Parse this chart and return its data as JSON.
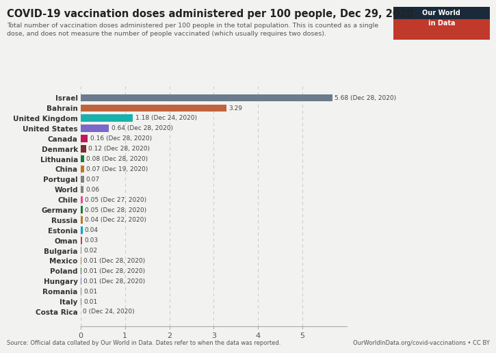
{
  "title": "COVID-19 vaccination doses administered per 100 people, Dec 29, 2020",
  "subtitle": "Total number of vaccination doses administered per 100 people in the total population. This is counted as a single\ndose, and does not measure the number of people vaccinated (which usually requires two doses).",
  "countries": [
    "Israel",
    "Bahrain",
    "United Kingdom",
    "United States",
    "Canada",
    "Denmark",
    "Lithuania",
    "China",
    "Portugal",
    "World",
    "Chile",
    "Germany",
    "Russia",
    "Estonia",
    "Oman",
    "Bulgaria",
    "Mexico",
    "Poland",
    "Hungary",
    "Romania",
    "Italy",
    "Costa Rica"
  ],
  "values": [
    5.68,
    3.29,
    1.18,
    0.64,
    0.16,
    0.12,
    0.08,
    0.07,
    0.07,
    0.06,
    0.05,
    0.05,
    0.04,
    0.04,
    0.03,
    0.02,
    0.01,
    0.01,
    0.01,
    0.01,
    0.01,
    0.0
  ],
  "labels": [
    "5.68 (Dec 28, 2020)",
    "3.29",
    "1.18 (Dec 24, 2020)",
    "0.64 (Dec 28, 2020)",
    "0.16 (Dec 28, 2020)",
    "0.12 (Dec 28, 2020)",
    "0.08 (Dec 28, 2020)",
    "0.07 (Dec 19, 2020)",
    "0.07",
    "0.06",
    "0.05 (Dec 27, 2020)",
    "0.05 (Dec 28, 2020)",
    "0.04 (Dec 22, 2020)",
    "0.04",
    "0.03",
    "0.02",
    "0.01 (Dec 28, 2020)",
    "0.01 (Dec 28, 2020)",
    "0.01 (Dec 28, 2020)",
    "0.01",
    "0.01",
    "0 (Dec 24, 2020)"
  ],
  "colors": [
    "#6b7b8d",
    "#c0633c",
    "#1ab1ad",
    "#7b68c8",
    "#c0185a",
    "#7a2e2e",
    "#1a7a3a",
    "#c07820",
    "#808080",
    "#808080",
    "#e84c8b",
    "#1a7a3a",
    "#c07820",
    "#00a0c8",
    "#c04040",
    "#808080",
    "#c07820",
    "#1a7a3a",
    "#7b68c8",
    "#808080",
    "#808080",
    "#808080"
  ],
  "xlabel": "",
  "xlim": [
    0,
    6.0
  ],
  "xticks": [
    0,
    1,
    2,
    3,
    4,
    5
  ],
  "source_text": "Source: Official data collated by Our World in Data. Dates refer to when the data was reported.",
  "owid_text": "OurWorldInData.org/covid-vaccinations • CC BY",
  "background_color": "#f2f2f0",
  "bar_height": 0.7
}
